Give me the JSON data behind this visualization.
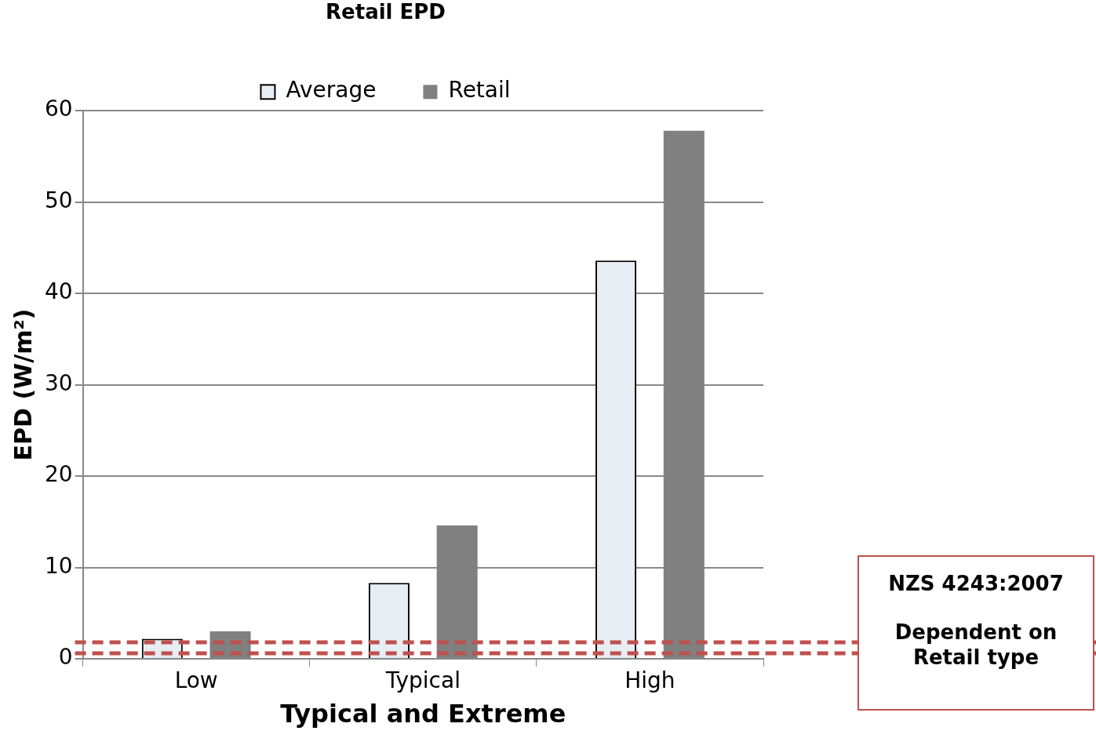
{
  "chart_data": {
    "type": "bar",
    "title": "Retail EPD",
    "xlabel": "Typical and Extreme",
    "ylabel": "EPD (W/m²)",
    "categories": [
      "Low",
      "Typical",
      "High"
    ],
    "series": [
      {
        "name": "Average",
        "color": "#e6edf3",
        "values": [
          2.2,
          8.3,
          43.6
        ]
      },
      {
        "name": "Retail",
        "color": "#808080",
        "values": [
          3.0,
          14.6,
          57.8
        ]
      }
    ],
    "ylim": [
      0,
      60
    ],
    "yticks": [
      0,
      10,
      20,
      30,
      40,
      50,
      60
    ],
    "grid": "y",
    "legend": "top",
    "ref_lines": [
      {
        "axis": "y",
        "value": 1.8,
        "color": "#c0504d",
        "line_style": "dashed"
      },
      {
        "axis": "y",
        "value": 0.6,
        "color": "#c0504d",
        "line_style": "dashed"
      }
    ],
    "annotations": [
      "NZS 4243:2007",
      "Dependent on Retail type"
    ]
  }
}
